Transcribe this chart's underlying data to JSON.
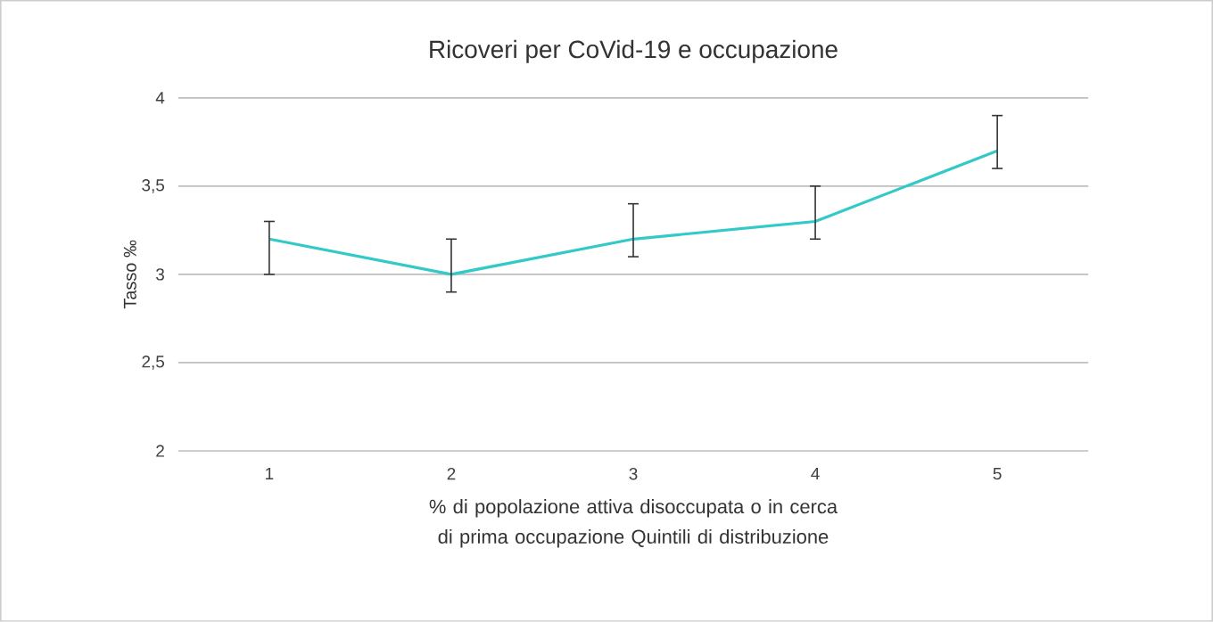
{
  "chart_data": {
    "type": "line",
    "title": "Ricoveri per CoVid-19 e occupazione",
    "xlabel": "% di popolazione attiva disoccupata o in cerca di prima occupazione Quintili di distribuzione",
    "ylabel": "Tasso ‰",
    "categories": [
      "1",
      "2",
      "3",
      "4",
      "5"
    ],
    "series": [
      {
        "color": "#33c9c9",
        "values": [
          3.2,
          3.0,
          3.2,
          3.3,
          3.7
        ],
        "errors": [
          [
            3.0,
            3.3
          ],
          [
            2.9,
            3.2
          ],
          [
            3.1,
            3.4
          ],
          [
            3.2,
            3.5
          ],
          [
            3.6,
            3.9
          ]
        ]
      }
    ],
    "ylim": [
      2,
      4
    ],
    "yticks": [
      2,
      {
        "value": 2.5,
        "label": "2,5"
      },
      3,
      {
        "value": 3.5,
        "label": "3,5"
      },
      4
    ],
    "grid": "y",
    "marker": "none",
    "line_style": "solid"
  }
}
